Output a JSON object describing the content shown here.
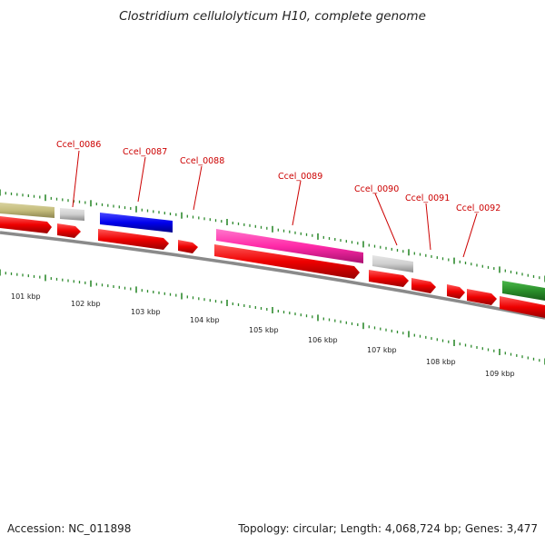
{
  "title": "Clostridium cellulolyticum H10, complete genome",
  "footer": {
    "accession": "Accession: NC_011898",
    "info": "Topology: circular; Length: 4,068,724 bp; Genes: 3,477"
  },
  "colors": {
    "cds": "#ee0000",
    "label": "#cc0000",
    "tick": "#2e8b2e",
    "backbone": "#8a8a8a"
  },
  "gene_labels": [
    "Ccel_0086",
    "Ccel_0087",
    "Ccel_0088",
    "Ccel_0089",
    "Ccel_0090",
    "Ccel_0091",
    "Ccel_0092"
  ],
  "scale_labels": [
    "101 kbp",
    "102 kbp",
    "103 kbp",
    "104 kbp",
    "105 kbp",
    "106 kbp",
    "107 kbp",
    "108 kbp",
    "109 kbp"
  ]
}
